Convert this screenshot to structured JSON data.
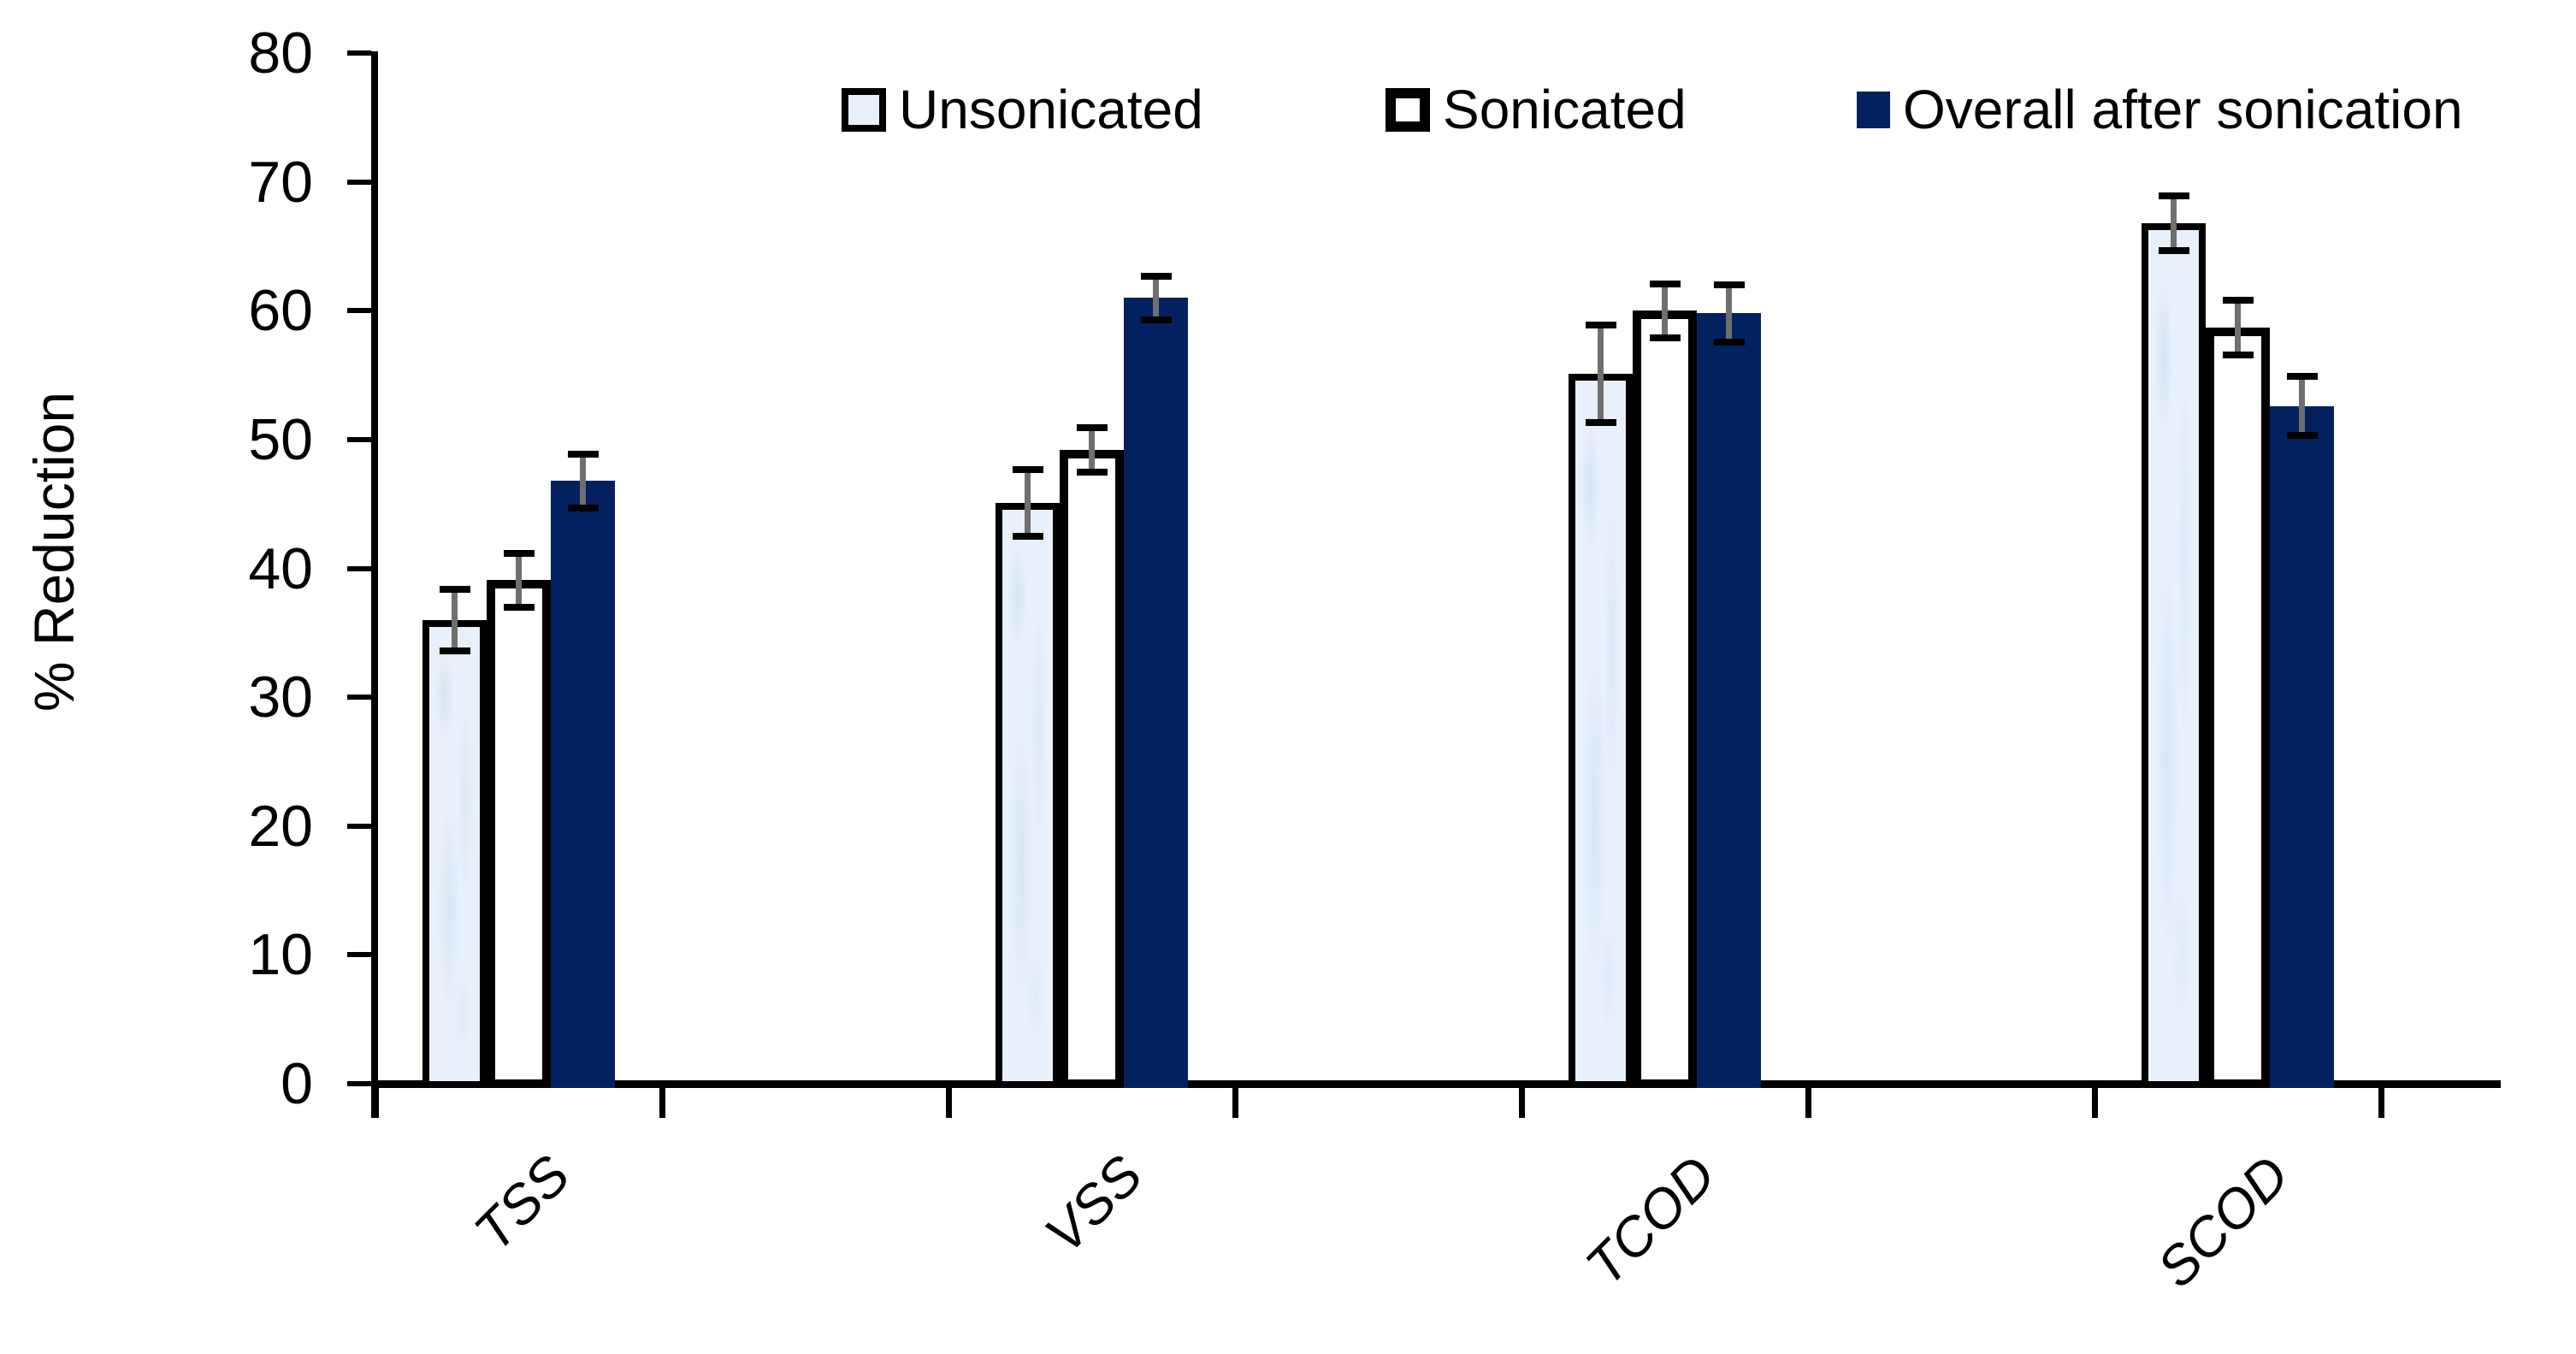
{
  "chart_data": {
    "type": "bar",
    "ylabel": "% Reduction",
    "categories": [
      "TSS",
      "VSS",
      "TCOD",
      "SCOD"
    ],
    "ylim": [
      0,
      80
    ],
    "ytick_step": 10,
    "grid": false,
    "legend_position": "top",
    "axis_color": "#000000",
    "error_bar_stem_color": "#6f6f6f",
    "error_bar_cap_color": "#000000",
    "series": [
      {
        "name": "Unsonicated",
        "fill": "#e8f0fb",
        "border_color": "#000000",
        "values": [
          36.0,
          45.1,
          55.1,
          66.8
        ],
        "errors": [
          2.4,
          2.6,
          3.8,
          2.1
        ]
      },
      {
        "name": "Sonicated",
        "fill": "#ffffff",
        "border_color": "#000000",
        "values": [
          39.1,
          49.2,
          60.0,
          58.7
        ],
        "errors": [
          2.1,
          1.7,
          2.1,
          2.1
        ]
      },
      {
        "name": "Overall after sonication",
        "fill": "#02215e",
        "border_color": null,
        "values": [
          46.8,
          61.0,
          59.8,
          52.6
        ],
        "errors": [
          2.1,
          1.7,
          2.2,
          2.3
        ]
      }
    ]
  }
}
